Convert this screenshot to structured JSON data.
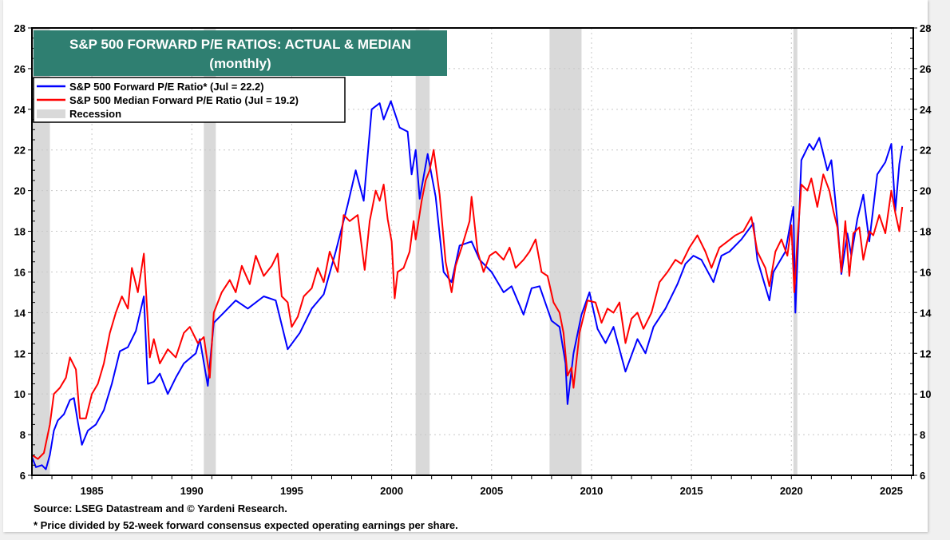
{
  "chart_data": {
    "type": "line",
    "title": "S&P 500 FORWARD P/E RATIOS: ACTUAL & MEDIAN",
    "subtitle": "(monthly)",
    "xlim": [
      1982.0,
      2026.1
    ],
    "ylim": [
      6,
      28
    ],
    "y_ticks": [
      6,
      8,
      10,
      12,
      14,
      16,
      18,
      20,
      22,
      24,
      26,
      28
    ],
    "x_ticks": [
      1985,
      1990,
      1995,
      2000,
      2005,
      2010,
      2015,
      2020,
      2025
    ],
    "y_axis_both_sides": true,
    "grid": true,
    "legend_placement": "top-left",
    "legend": [
      {
        "label": "S&P 500 Forward P/E Ratio* (Jul = 22.2)",
        "color": "#0000ff",
        "kind": "line"
      },
      {
        "label": "S&P 500 Median Forward P/E Ratio  (Jul = 19.2)",
        "color": "#ff0000",
        "kind": "line"
      },
      {
        "label": "Recession",
        "color": "#d9d9d9",
        "kind": "box"
      }
    ],
    "recessions": [
      [
        1981.6,
        1982.9
      ],
      [
        1990.6,
        1991.2
      ],
      [
        2001.2,
        2001.9
      ],
      [
        2007.9,
        2009.5
      ],
      [
        2020.1,
        2020.3
      ]
    ],
    "series": [
      {
        "name": "S&P 500 Forward P/E Ratio*",
        "color": "#0000ff",
        "points": [
          [
            1982.0,
            6.9
          ],
          [
            1982.2,
            6.4
          ],
          [
            1982.5,
            6.5
          ],
          [
            1982.7,
            6.3
          ],
          [
            1982.9,
            7.0
          ],
          [
            1983.1,
            8.2
          ],
          [
            1983.3,
            8.7
          ],
          [
            1983.6,
            9.0
          ],
          [
            1983.9,
            9.7
          ],
          [
            1984.1,
            9.8
          ],
          [
            1984.3,
            8.6
          ],
          [
            1984.5,
            7.5
          ],
          [
            1984.8,
            8.2
          ],
          [
            1985.2,
            8.5
          ],
          [
            1985.6,
            9.2
          ],
          [
            1986.0,
            10.5
          ],
          [
            1986.4,
            12.1
          ],
          [
            1986.8,
            12.3
          ],
          [
            1987.2,
            13.1
          ],
          [
            1987.6,
            14.8
          ],
          [
            1987.8,
            10.5
          ],
          [
            1988.1,
            10.6
          ],
          [
            1988.4,
            11.0
          ],
          [
            1988.8,
            10.0
          ],
          [
            1989.2,
            10.8
          ],
          [
            1989.6,
            11.5
          ],
          [
            1990.2,
            12.0
          ],
          [
            1990.4,
            12.7
          ],
          [
            1990.8,
            10.4
          ],
          [
            1991.1,
            13.5
          ],
          [
            1991.6,
            14.0
          ],
          [
            1992.2,
            14.6
          ],
          [
            1992.8,
            14.2
          ],
          [
            1993.6,
            14.8
          ],
          [
            1994.2,
            14.6
          ],
          [
            1994.8,
            12.2
          ],
          [
            1995.4,
            13.0
          ],
          [
            1996.0,
            14.2
          ],
          [
            1996.6,
            14.9
          ],
          [
            1997.2,
            17.0
          ],
          [
            1997.8,
            19.3
          ],
          [
            1998.2,
            21.0
          ],
          [
            1998.6,
            19.5
          ],
          [
            1999.0,
            24.0
          ],
          [
            1999.4,
            24.3
          ],
          [
            1999.6,
            23.5
          ],
          [
            1999.96,
            24.4
          ],
          [
            2000.4,
            23.1
          ],
          [
            2000.8,
            22.9
          ],
          [
            2001.0,
            20.8
          ],
          [
            2001.2,
            22.0
          ],
          [
            2001.4,
            19.6
          ],
          [
            2001.8,
            21.8
          ],
          [
            2002.2,
            19.7
          ],
          [
            2002.6,
            16.0
          ],
          [
            2003.0,
            15.5
          ],
          [
            2003.4,
            17.3
          ],
          [
            2004.0,
            17.5
          ],
          [
            2004.4,
            16.6
          ],
          [
            2005.0,
            16.0
          ],
          [
            2005.6,
            15.0
          ],
          [
            2006.0,
            15.3
          ],
          [
            2006.6,
            13.9
          ],
          [
            2007.0,
            15.2
          ],
          [
            2007.4,
            15.3
          ],
          [
            2008.0,
            13.6
          ],
          [
            2008.4,
            13.3
          ],
          [
            2008.7,
            11.5
          ],
          [
            2008.8,
            9.5
          ],
          [
            2009.1,
            12.0
          ],
          [
            2009.5,
            13.9
          ],
          [
            2009.9,
            15.0
          ],
          [
            2010.3,
            13.2
          ],
          [
            2010.7,
            12.5
          ],
          [
            2011.1,
            13.3
          ],
          [
            2011.7,
            11.1
          ],
          [
            2012.3,
            12.7
          ],
          [
            2012.7,
            12.0
          ],
          [
            2013.1,
            13.3
          ],
          [
            2013.7,
            14.2
          ],
          [
            2014.3,
            15.4
          ],
          [
            2014.7,
            16.4
          ],
          [
            2015.1,
            16.8
          ],
          [
            2015.5,
            16.6
          ],
          [
            2016.1,
            15.5
          ],
          [
            2016.5,
            16.8
          ],
          [
            2016.9,
            17.0
          ],
          [
            2017.5,
            17.6
          ],
          [
            2018.1,
            18.4
          ],
          [
            2018.3,
            16.6
          ],
          [
            2018.9,
            14.6
          ],
          [
            2019.1,
            16.0
          ],
          [
            2019.7,
            17.0
          ],
          [
            2020.1,
            19.2
          ],
          [
            2020.2,
            14.0
          ],
          [
            2020.5,
            21.5
          ],
          [
            2020.9,
            22.3
          ],
          [
            2021.1,
            22.0
          ],
          [
            2021.4,
            22.6
          ],
          [
            2021.8,
            21.0
          ],
          [
            2022.0,
            21.5
          ],
          [
            2022.3,
            18.5
          ],
          [
            2022.5,
            15.9
          ],
          [
            2022.8,
            17.9
          ],
          [
            2023.0,
            16.8
          ],
          [
            2023.3,
            18.6
          ],
          [
            2023.6,
            19.8
          ],
          [
            2023.9,
            17.5
          ],
          [
            2024.3,
            20.8
          ],
          [
            2024.7,
            21.4
          ],
          [
            2025.0,
            22.3
          ],
          [
            2025.2,
            19.0
          ],
          [
            2025.4,
            21.3
          ],
          [
            2025.55,
            22.2
          ]
        ]
      },
      {
        "name": "S&P 500 Median Forward P/E Ratio",
        "color": "#ff0000",
        "points": [
          [
            1982.0,
            7.0
          ],
          [
            1982.3,
            6.8
          ],
          [
            1982.6,
            7.1
          ],
          [
            1982.9,
            8.5
          ],
          [
            1983.1,
            10.0
          ],
          [
            1983.4,
            10.3
          ],
          [
            1983.7,
            10.8
          ],
          [
            1983.9,
            11.8
          ],
          [
            1984.2,
            11.2
          ],
          [
            1984.4,
            8.8
          ],
          [
            1984.7,
            8.8
          ],
          [
            1985.0,
            10.0
          ],
          [
            1985.3,
            10.5
          ],
          [
            1985.6,
            11.5
          ],
          [
            1985.9,
            13.0
          ],
          [
            1986.2,
            14.0
          ],
          [
            1986.5,
            14.8
          ],
          [
            1986.8,
            14.2
          ],
          [
            1987.0,
            16.2
          ],
          [
            1987.3,
            15.0
          ],
          [
            1987.6,
            16.9
          ],
          [
            1987.9,
            11.8
          ],
          [
            1988.1,
            12.7
          ],
          [
            1988.4,
            11.5
          ],
          [
            1988.8,
            12.2
          ],
          [
            1989.2,
            11.8
          ],
          [
            1989.6,
            13.0
          ],
          [
            1989.9,
            13.3
          ],
          [
            1990.3,
            12.5
          ],
          [
            1990.6,
            12.8
          ],
          [
            1990.9,
            10.8
          ],
          [
            1991.1,
            14.0
          ],
          [
            1991.5,
            15.0
          ],
          [
            1991.9,
            15.6
          ],
          [
            1992.2,
            15.0
          ],
          [
            1992.5,
            16.3
          ],
          [
            1992.9,
            15.4
          ],
          [
            1993.2,
            16.8
          ],
          [
            1993.6,
            15.8
          ],
          [
            1994.0,
            16.3
          ],
          [
            1994.3,
            16.9
          ],
          [
            1994.5,
            14.8
          ],
          [
            1994.8,
            14.5
          ],
          [
            1995.0,
            13.3
          ],
          [
            1995.3,
            13.8
          ],
          [
            1995.6,
            14.8
          ],
          [
            1996.0,
            15.2
          ],
          [
            1996.3,
            16.2
          ],
          [
            1996.6,
            15.5
          ],
          [
            1996.9,
            17.0
          ],
          [
            1997.3,
            16.0
          ],
          [
            1997.6,
            18.8
          ],
          [
            1997.9,
            18.5
          ],
          [
            1998.3,
            18.8
          ],
          [
            1998.65,
            16.1
          ],
          [
            1998.9,
            18.5
          ],
          [
            1999.2,
            20.0
          ],
          [
            1999.4,
            19.5
          ],
          [
            1999.6,
            20.3
          ],
          [
            1999.8,
            18.6
          ],
          [
            2000.0,
            17.5
          ],
          [
            2000.15,
            14.7
          ],
          [
            2000.3,
            16.0
          ],
          [
            2000.6,
            16.2
          ],
          [
            2000.9,
            17.0
          ],
          [
            2001.1,
            18.5
          ],
          [
            2001.2,
            17.6
          ],
          [
            2001.5,
            19.5
          ],
          [
            2001.7,
            20.5
          ],
          [
            2001.9,
            21.0
          ],
          [
            2002.1,
            22.0
          ],
          [
            2002.4,
            19.8
          ],
          [
            2002.7,
            16.5
          ],
          [
            2003.0,
            15.0
          ],
          [
            2003.2,
            16.3
          ],
          [
            2003.5,
            17.2
          ],
          [
            2003.9,
            18.5
          ],
          [
            2004.0,
            19.7
          ],
          [
            2004.3,
            17.0
          ],
          [
            2004.6,
            16.0
          ],
          [
            2004.9,
            16.8
          ],
          [
            2005.2,
            17.0
          ],
          [
            2005.6,
            16.6
          ],
          [
            2005.9,
            17.2
          ],
          [
            2006.2,
            16.2
          ],
          [
            2006.6,
            16.6
          ],
          [
            2006.9,
            17.0
          ],
          [
            2007.2,
            17.6
          ],
          [
            2007.5,
            16.0
          ],
          [
            2007.8,
            15.8
          ],
          [
            2008.1,
            14.5
          ],
          [
            2008.4,
            14.0
          ],
          [
            2008.6,
            13.0
          ],
          [
            2008.8,
            10.9
          ],
          [
            2009.0,
            11.3
          ],
          [
            2009.1,
            10.3
          ],
          [
            2009.4,
            13.0
          ],
          [
            2009.8,
            14.6
          ],
          [
            2010.2,
            14.5
          ],
          [
            2010.5,
            13.5
          ],
          [
            2010.8,
            14.2
          ],
          [
            2011.1,
            14.0
          ],
          [
            2011.4,
            14.5
          ],
          [
            2011.7,
            12.5
          ],
          [
            2012.0,
            13.7
          ],
          [
            2012.3,
            14.0
          ],
          [
            2012.6,
            13.2
          ],
          [
            2013.0,
            14.0
          ],
          [
            2013.4,
            15.5
          ],
          [
            2013.8,
            16.0
          ],
          [
            2014.2,
            16.6
          ],
          [
            2014.5,
            16.4
          ],
          [
            2014.9,
            17.2
          ],
          [
            2015.3,
            17.8
          ],
          [
            2015.7,
            17.0
          ],
          [
            2016.0,
            16.2
          ],
          [
            2016.4,
            17.2
          ],
          [
            2016.8,
            17.5
          ],
          [
            2017.2,
            17.8
          ],
          [
            2017.6,
            18.0
          ],
          [
            2018.0,
            18.7
          ],
          [
            2018.3,
            17.0
          ],
          [
            2018.7,
            16.2
          ],
          [
            2018.9,
            15.3
          ],
          [
            2019.2,
            17.0
          ],
          [
            2019.5,
            17.6
          ],
          [
            2019.8,
            16.8
          ],
          [
            2020.0,
            18.3
          ],
          [
            2020.15,
            15.0
          ],
          [
            2020.3,
            17.5
          ],
          [
            2020.5,
            20.3
          ],
          [
            2020.8,
            20.0
          ],
          [
            2021.0,
            20.6
          ],
          [
            2021.3,
            19.2
          ],
          [
            2021.6,
            20.8
          ],
          [
            2021.9,
            20.0
          ],
          [
            2022.1,
            19.0
          ],
          [
            2022.3,
            18.2
          ],
          [
            2022.5,
            16.0
          ],
          [
            2022.7,
            18.5
          ],
          [
            2022.9,
            15.8
          ],
          [
            2023.1,
            17.9
          ],
          [
            2023.4,
            18.2
          ],
          [
            2023.6,
            16.6
          ],
          [
            2023.9,
            18.0
          ],
          [
            2024.1,
            17.8
          ],
          [
            2024.4,
            18.8
          ],
          [
            2024.7,
            17.9
          ],
          [
            2025.0,
            20.0
          ],
          [
            2025.2,
            18.9
          ],
          [
            2025.4,
            18.0
          ],
          [
            2025.55,
            19.2
          ]
        ]
      }
    ],
    "title_box_color": "#2f7f71",
    "notes": [
      "Source: LSEG Datastream and © Yardeni Research.",
      "* Price divided by 52-week forward consensus expected operating earnings per share."
    ]
  }
}
